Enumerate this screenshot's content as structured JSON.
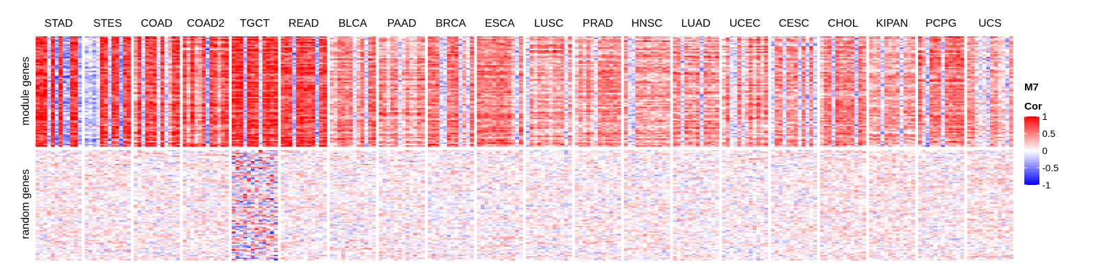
{
  "chart_data": {
    "type": "heatmap",
    "panels": [
      "STAD",
      "STES",
      "COAD",
      "COAD2",
      "TGCT",
      "READ",
      "BLCA",
      "PAAD",
      "BRCA",
      "ESCA",
      "LUSC",
      "PRAD",
      "HNSC",
      "LUAD",
      "UCEC",
      "CESC",
      "CHOL",
      "KIPAN",
      "PCPG",
      "UCS"
    ],
    "row_groups": [
      "module genes",
      "random genes"
    ],
    "value_range": [
      -1,
      1
    ],
    "color_scale": {
      "low": "#0000ff",
      "mid": "#ffffff",
      "high": "#ff0000"
    },
    "legend": {
      "title_line1": "M7",
      "title_line2": "Cor",
      "ticks": [
        1,
        0.5,
        0,
        -0.5,
        -1
      ],
      "placement": "right"
    },
    "module_mean_cor": [
      0.8,
      0.72,
      0.72,
      0.72,
      0.78,
      0.7,
      0.52,
      0.45,
      0.52,
      0.5,
      0.38,
      0.45,
      0.35,
      0.42,
      0.45,
      0.42,
      0.48,
      0.35,
      0.55,
      0.4
    ],
    "random_mean_cor": [
      0.05,
      0.05,
      0.04,
      0.05,
      0.05,
      0.05,
      0.04,
      0.04,
      0.03,
      0.05,
      0.03,
      0.05,
      0.04,
      0.04,
      0.04,
      0.04,
      0.08,
      0.06,
      0.05,
      0.08
    ]
  }
}
